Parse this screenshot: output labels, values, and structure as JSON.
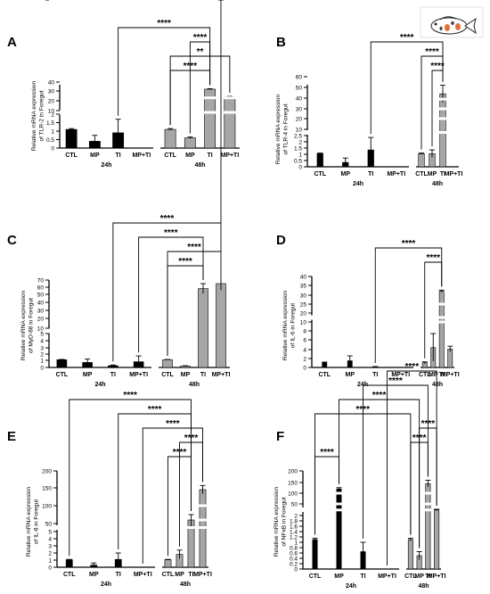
{
  "logo": {
    "name": "fish-icon"
  },
  "colors": {
    "dark": "#000000",
    "light": "#a6a6a6",
    "axis": "#000000"
  },
  "chart_data": [
    {
      "panel": "A",
      "type": "bar",
      "id": "a",
      "ylabel": [
        "Relative mRNA expression",
        "of TLR-2 in Foregut"
      ],
      "categories": [
        "CTL",
        "MP",
        "TI",
        "MP+TI",
        "CTL",
        "MP",
        "TI",
        "MP+TI"
      ],
      "groups": [
        "24h",
        "48h"
      ],
      "values": [
        1.1,
        0.4,
        0.9,
        0.0,
        1.1,
        0.6,
        32,
        24
      ],
      "errors": [
        0.05,
        0.35,
        0.8,
        0.0,
        0.05,
        0.05,
        0.6,
        0.5
      ],
      "yticks": [
        "0",
        "0.5",
        "1",
        "1.5",
        "2",
        "10",
        "20",
        "30",
        "40"
      ],
      "break": {
        "low": 2,
        "high": 10
      },
      "brackets": [
        {
          "from": 2,
          "to": 6,
          "label": "****"
        },
        {
          "from": 5,
          "to": 6,
          "label": "****"
        },
        {
          "from": 4,
          "to": 7,
          "label": "**"
        },
        {
          "from": 4,
          "to": 6,
          "label": "****"
        }
      ]
    },
    {
      "panel": "B",
      "type": "bar",
      "id": "b",
      "ylabel": [
        "Relative mRNA expression",
        "of TLR-4 in Foregut"
      ],
      "categories": [
        "CTL",
        "MP",
        "TI",
        "MP+TI",
        "CTL",
        "MP",
        "TI",
        "MP+TI"
      ],
      "groups": [
        "24h",
        "48h"
      ],
      "values": [
        1.05,
        0.35,
        1.35,
        0.0,
        1.05,
        1.05,
        44,
        0.0
      ],
      "errors": [
        0.05,
        0.35,
        1.0,
        0.0,
        0.05,
        0.3,
        8,
        0.0
      ],
      "yticks": [
        "0",
        "0.5",
        "1",
        "1.5",
        "2",
        "2.5",
        "10",
        "20",
        "30",
        "40",
        "50",
        "60"
      ],
      "break": {
        "low": 2.5,
        "high": 10
      },
      "brackets": [
        {
          "from": 2,
          "to": 6,
          "label": "****"
        },
        {
          "from": 4,
          "to": 6,
          "label": "****"
        },
        {
          "from": 5,
          "to": 6,
          "label": "****"
        }
      ]
    },
    {
      "panel": "C",
      "type": "bar",
      "id": "c",
      "ylabel": [
        "Relative mRNA expression",
        "of MyD-88 in Foregut"
      ],
      "categories": [
        "CTL",
        "MP",
        "TI",
        "MP+TI",
        "CTL",
        "MP",
        "TI",
        "MP+TI"
      ],
      "groups": [
        "24h",
        "48h"
      ],
      "values": [
        1.1,
        0.7,
        0.25,
        0.8,
        1.1,
        0.2,
        58,
        65
      ],
      "errors": [
        0.05,
        0.5,
        0.1,
        0.9,
        0.05,
        0.05,
        7,
        9
      ],
      "yticks": [
        "0",
        "1",
        "2",
        "3",
        "4",
        "5",
        "10",
        "20",
        "30",
        "40",
        "50",
        "60",
        "70",
        "80"
      ],
      "break": {
        "low": 5,
        "high": 10
      },
      "brackets": [
        {
          "from": 2,
          "to": 7,
          "label": "****"
        },
        {
          "from": 3,
          "to": 6,
          "label": "****"
        },
        {
          "from": 4,
          "to": 7,
          "label": "****"
        },
        {
          "from": 4,
          "to": 6,
          "label": "****"
        }
      ]
    },
    {
      "panel": "D",
      "type": "bar",
      "id": "d",
      "ylabel": [
        "Relative mRNA expression",
        "of IL-6 in Foregut"
      ],
      "categories": [
        "CTL",
        "MP",
        "TI",
        "MP+TI",
        "CTL",
        "MP",
        "TI",
        "MP+TI"
      ],
      "groups": [
        "24h",
        "48h"
      ],
      "values": [
        1.1,
        1.5,
        0.15,
        0.0,
        1.05,
        4.4,
        32,
        4.1
      ],
      "errors": [
        0.1,
        1.1,
        0.05,
        0.0,
        0.2,
        3.0,
        0.6,
        0.6
      ],
      "yticks": [
        "0",
        "2",
        "4",
        "6",
        "8",
        "10",
        "20",
        "25",
        "30",
        "35",
        "40"
      ],
      "break": {
        "low": 10,
        "high": 20
      },
      "brackets": [
        {
          "from": 2,
          "to": 6,
          "label": "****"
        },
        {
          "from": 4,
          "to": 6,
          "label": "****"
        }
      ]
    },
    {
      "panel": "E",
      "type": "bar",
      "id": "e",
      "ylabel": [
        "Relative mRNA expression",
        "of IL-8 in Foregut"
      ],
      "categories": [
        "CTL",
        "MP",
        "TI",
        "MP+TI",
        "CTL",
        "MP",
        "TI",
        "MP+TI"
      ],
      "groups": [
        "24h",
        "48h"
      ],
      "values": [
        1.05,
        0.3,
        1.1,
        0.0,
        1.05,
        1.8,
        60,
        145
      ],
      "errors": [
        0.05,
        0.3,
        0.9,
        0.0,
        0.05,
        0.6,
        15,
        12
      ],
      "yticks": [
        "0",
        "1",
        "2",
        "3",
        "4",
        "5",
        "50",
        "100",
        "150",
        "200"
      ],
      "break": {
        "low": 5,
        "high": 50
      },
      "brackets": [
        {
          "from": 0,
          "to": 6,
          "label": "****"
        },
        {
          "from": 2,
          "to": 6,
          "label": "****"
        },
        {
          "from": 3,
          "to": 7,
          "label": "****"
        },
        {
          "from": 5,
          "to": 7,
          "label": "****"
        },
        {
          "from": 4,
          "to": 6,
          "label": "****"
        }
      ]
    },
    {
      "panel": "F",
      "type": "bar",
      "id": "f",
      "ylabel": [
        "Relative mRNA expression",
        "of NFκB in Foregut"
      ],
      "categories": [
        "CTL",
        "MP",
        "TI",
        "MP+TI",
        "CTL",
        "MP",
        "TI",
        "MP+TI"
      ],
      "groups": [
        "24h",
        "48h"
      ],
      "values": [
        1.1,
        120,
        0.65,
        0.0,
        1.1,
        0.5,
        145,
        25
      ],
      "errors": [
        0.05,
        6,
        0.35,
        0.0,
        0.05,
        0.15,
        15,
        3
      ],
      "yticks": [
        "0",
        "0.2",
        "0.4",
        "0.6",
        "0.8",
        "1",
        "1.2",
        "1.4",
        "1.6",
        "1.8",
        "2",
        "50",
        "100",
        "150",
        "200"
      ],
      "break": {
        "low": 2,
        "high": 25
      },
      "brackets": [
        {
          "from": 3,
          "to": 7,
          "label": "****"
        },
        {
          "from": 2,
          "to": 6,
          "label": "****"
        },
        {
          "from": 1,
          "to": 5,
          "label": "****"
        },
        {
          "from": 0,
          "to": 4,
          "label": "****"
        },
        {
          "from": 5,
          "to": 7,
          "label": "****"
        },
        {
          "from": 4,
          "to": 6,
          "label": "****"
        },
        {
          "from": 0,
          "to": 1,
          "label": "****"
        }
      ]
    }
  ]
}
